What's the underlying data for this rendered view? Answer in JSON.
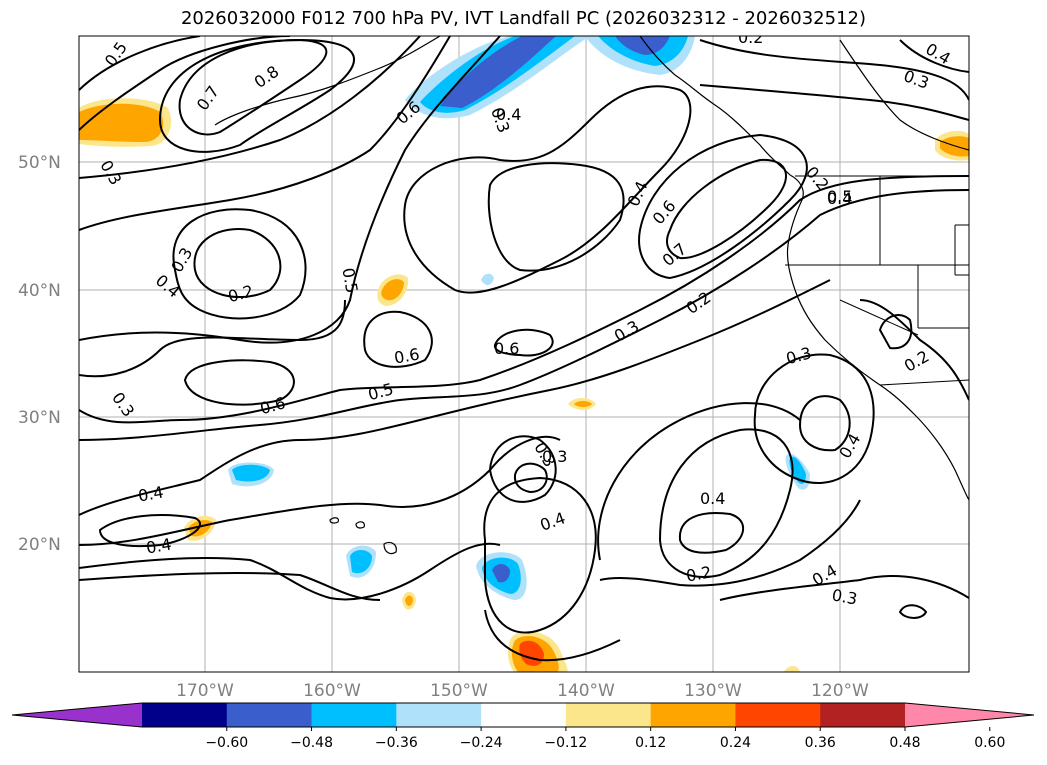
{
  "title": "2026032000 F012 700 hPa PV, IVT Landfall PC (2026032312 - 2026032512)",
  "latitude_labels": [
    "50°N",
    "40°N",
    "30°N",
    "20°N"
  ],
  "longitude_labels": [
    "170°W",
    "160°W",
    "150°W",
    "140°W",
    "130°W",
    "120°W"
  ],
  "contour_labels": [
    "0.5",
    "0.7",
    "0.8",
    "0.6",
    "0.3",
    "0.2",
    "0.4",
    "0.3",
    "0.4",
    "0.2",
    "0.3",
    "0.5",
    "0.6",
    "0.6",
    "0.6",
    "0.5",
    "0.3",
    "0.4",
    "0.5",
    "0.4",
    "0.6",
    "0.7",
    "0.3",
    "0.2",
    "0.3",
    "0.4",
    "0.4",
    "0.2",
    "0.4",
    "0.3",
    "0.3",
    "0.4",
    "0.2",
    "0.4",
    "0.3",
    "0.2",
    "0.4",
    "0.4",
    "0.3"
  ],
  "colorbar": {
    "ticks": [
      "−0.60",
      "−0.48",
      "−0.36",
      "−0.24",
      "−0.12",
      "0.12",
      "0.24",
      "0.36",
      "0.48",
      "0.60"
    ],
    "colors": [
      "#9932cc",
      "#00008b",
      "#3a5fcd",
      "#00bfff",
      "#afe1fa",
      "#ffffff",
      "#fce68c",
      "#ffa500",
      "#ff4500",
      "#b22222",
      "#ff88aa"
    ]
  }
}
